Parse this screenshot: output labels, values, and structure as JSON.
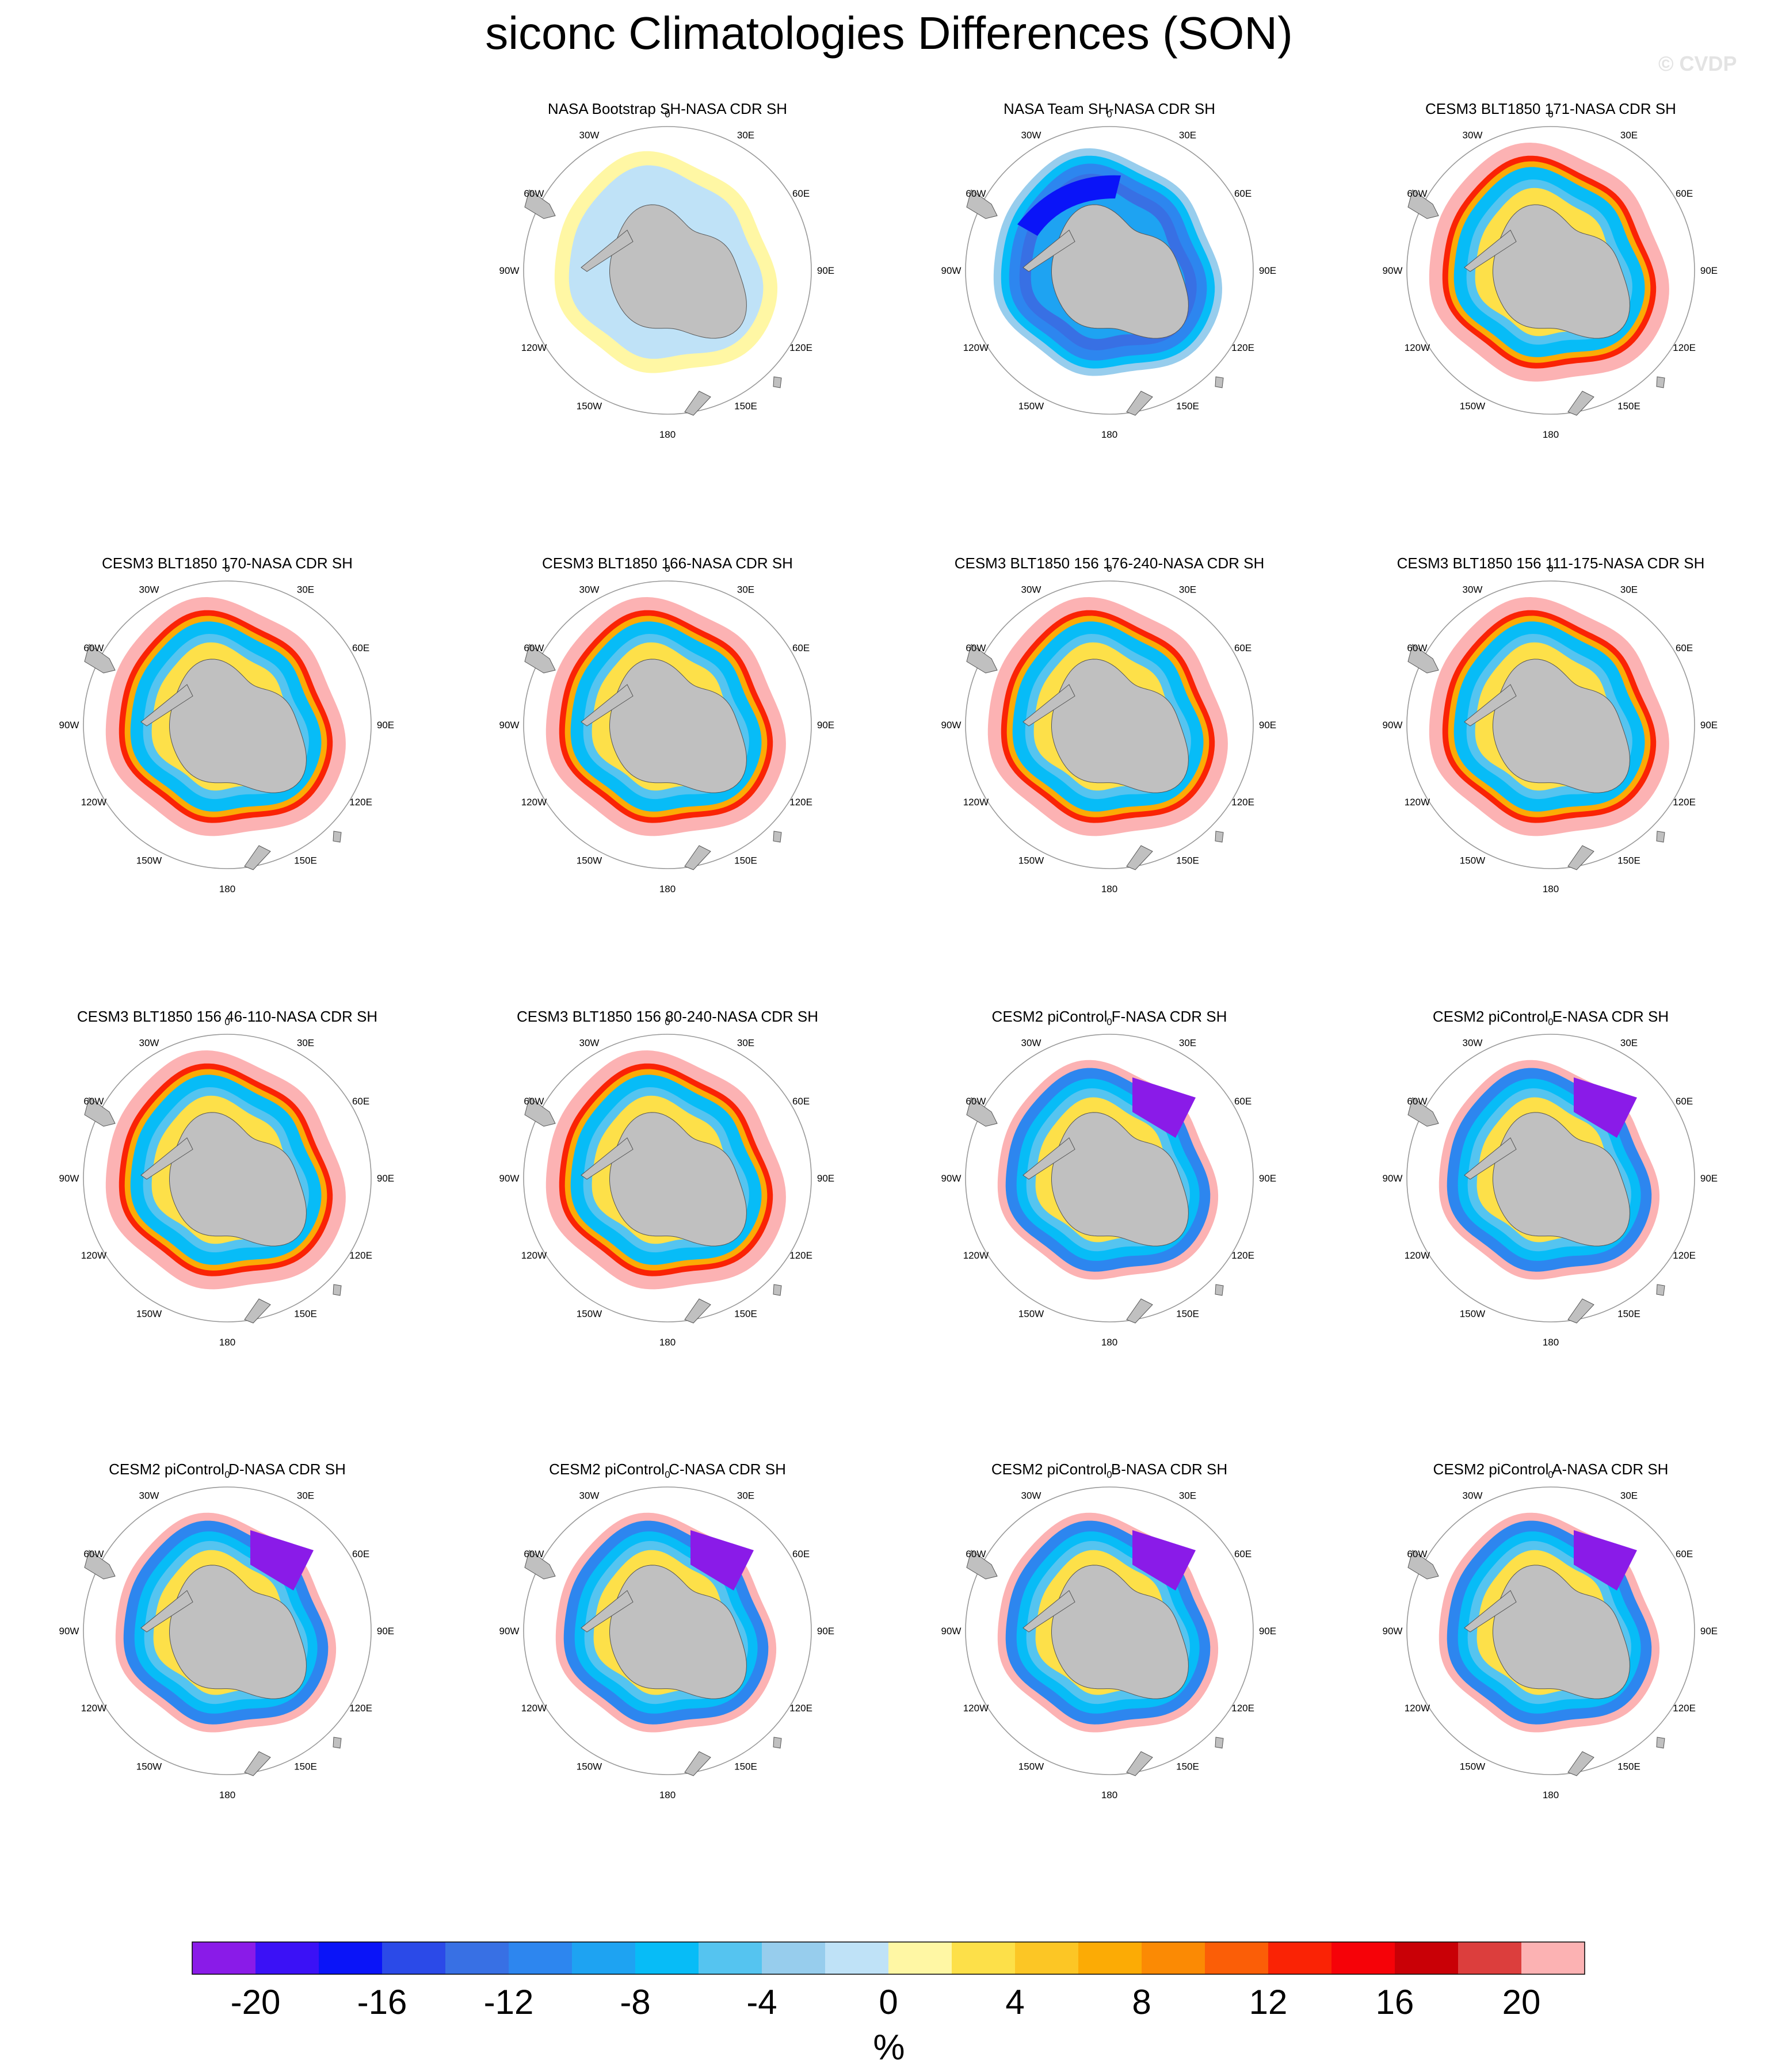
{
  "title": "siconc Climatologies Differences (SON)",
  "watermark": "© CVDP",
  "colors": {
    "land": "#c0c0c0",
    "palette": [
      "#8a1be8",
      "#3b11f6",
      "#0a14f8",
      "#2b4ae8",
      "#3870e4",
      "#2d86ef",
      "#1ea3f2",
      "#07bcf7",
      "#55c4f0",
      "#97cded",
      "#bfe2f7",
      "#fff7a4",
      "#fde049",
      "#fcc625",
      "#fcab05",
      "#fb8a04",
      "#fb5e07",
      "#fa2305",
      "#f60208",
      "#c90006",
      "#dc3e3d",
      "#fcb2b3"
    ]
  },
  "colorbar": {
    "tick_labels": [
      "-20",
      "-16",
      "-12",
      "-8",
      "-4",
      "0",
      "4",
      "8",
      "12",
      "16",
      "20"
    ],
    "units": "%"
  },
  "map_labels": {
    "lon_0": "0",
    "lon_30w": "30W",
    "lon_30e": "30E",
    "lon_60w": "60W",
    "lon_60e": "60E",
    "lon_90w": "90W",
    "lon_90e": "90E",
    "lon_120w": "120W",
    "lon_120e": "120E",
    "lon_150w": "150W",
    "lon_150e": "150E",
    "lon_180": "180"
  },
  "chart_data": {
    "type": "heatmap",
    "projection": "south-polar-stereographic",
    "variable": "siconc",
    "season": "SON",
    "contour_levels": [
      -22,
      -20,
      -18,
      -16,
      -14,
      -12,
      -10,
      -8,
      -6,
      -4,
      -2,
      0,
      2,
      4,
      6,
      8,
      10,
      12,
      14,
      16,
      18,
      20,
      22
    ],
    "panels": [
      {
        "name": "NASA Bootstrap SH-NASA CDR SH",
        "pattern": "bootstrap"
      },
      {
        "name": "NASA Team SH-NASA CDR SH",
        "pattern": "team"
      },
      {
        "name": "CESM3 BLT1850 171-NASA CDR SH",
        "pattern": "cesm3"
      },
      {
        "name": "CESM3 BLT1850 170-NASA CDR SH",
        "pattern": "cesm3"
      },
      {
        "name": "CESM3 BLT1850 166-NASA CDR SH",
        "pattern": "cesm3"
      },
      {
        "name": "CESM3 BLT1850 156 176-240-NASA CDR SH",
        "pattern": "cesm3"
      },
      {
        "name": "CESM3 BLT1850 156 111-175-NASA CDR SH",
        "pattern": "cesm3"
      },
      {
        "name": "CESM3 BLT1850 156 46-110-NASA CDR SH",
        "pattern": "cesm3"
      },
      {
        "name": "CESM3 BLT1850 156 80-240-NASA CDR SH",
        "pattern": "cesm3"
      },
      {
        "name": "CESM2 piControl F-NASA CDR SH",
        "pattern": "cesm2"
      },
      {
        "name": "CESM2 piControl E-NASA CDR SH",
        "pattern": "cesm2"
      },
      {
        "name": "CESM2 piControl D-NASA CDR SH",
        "pattern": "cesm2"
      },
      {
        "name": "CESM2 piControl C-NASA CDR SH",
        "pattern": "cesm2"
      },
      {
        "name": "CESM2 piControl B-NASA CDR SH",
        "pattern": "cesm2"
      },
      {
        "name": "CESM2 piControl A-NASA CDR SH",
        "pattern": "cesm2"
      }
    ]
  }
}
